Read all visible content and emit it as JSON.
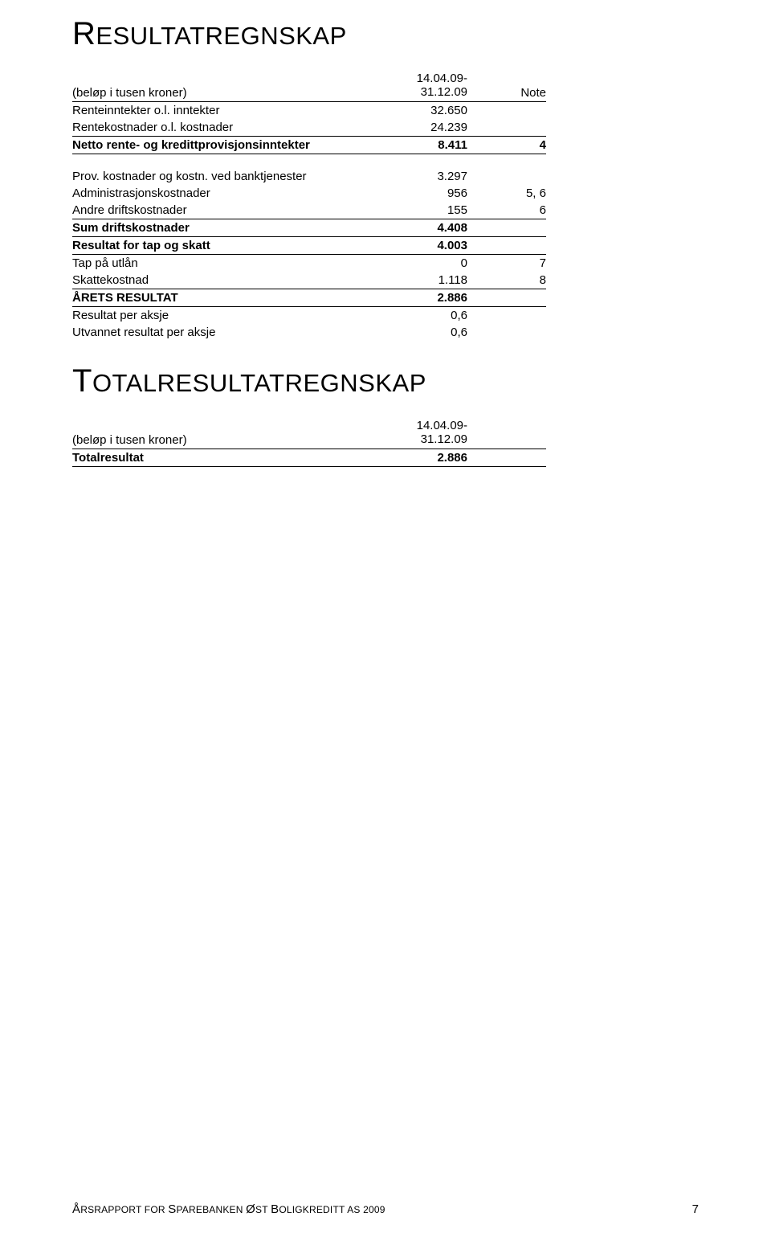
{
  "title1": {
    "first": "R",
    "rest": "ESULTATREGNSKAP"
  },
  "title2": {
    "first": "T",
    "rest": "OTALRESULTATREGNSKAP"
  },
  "period_label_line1": "14.04.09-",
  "period_label_line2": "31.12.09",
  "note_header": "Note",
  "table1": {
    "subhead": "(beløp i tusen kroner)",
    "rows": [
      {
        "label": "Renteinntekter o.l. inntekter",
        "val": "32.650",
        "note": ""
      },
      {
        "label": "Rentekostnader o.l. kostnader",
        "val": "24.239",
        "note": "",
        "underline": true
      },
      {
        "label": "Netto rente- og kredittprovisjonsinntekter",
        "val": "8.411",
        "note": "4",
        "bold": true,
        "underline": true
      }
    ],
    "rows2": [
      {
        "label": "Prov. kostnader og kostn. ved banktjenester",
        "val": "3.297",
        "note": ""
      },
      {
        "label": "Administrasjonskostnader",
        "val": "956",
        "note": "5, 6"
      },
      {
        "label": "Andre driftskostnader",
        "val": "155",
        "note": "6",
        "underline": true
      },
      {
        "label": "Sum driftskostnader",
        "val": "4.408",
        "note": "",
        "bold": true,
        "underline": true
      },
      {
        "label": "Resultat for tap og skatt",
        "val": "4.003",
        "note": "",
        "bold": true,
        "underline": true
      },
      {
        "label": "Tap på utlån",
        "val": "0",
        "note": "7"
      },
      {
        "label": "Skattekostnad",
        "val": "1.118",
        "note": "8",
        "underline": true
      },
      {
        "label": "ÅRETS RESULTAT",
        "val": "2.886",
        "note": "",
        "bold": true,
        "underline": true
      },
      {
        "label": "Resultat per aksje",
        "val": "0,6",
        "note": ""
      },
      {
        "label": "Utvannet resultat per aksje",
        "val": "0,6",
        "note": ""
      }
    ]
  },
  "table2": {
    "subhead": "(beløp i tusen kroner)",
    "rows": [
      {
        "label": "Totalresultat",
        "val": "2.886",
        "note": "",
        "bold": true,
        "underline": true
      }
    ]
  },
  "footer": {
    "text_parts": [
      "Å",
      "RSRAPPORT FOR ",
      "S",
      "PAREBANKEN ",
      "Ø",
      "ST ",
      "B",
      "OLIGKREDITT ",
      "AS 2009"
    ],
    "page": "7"
  },
  "colors": {
    "text": "#000000",
    "background": "#ffffff",
    "rule": "#000000"
  },
  "fonts": {
    "title_first_pt": 40,
    "title_rest_pt": 31,
    "body_pt": 15,
    "footer_small_pt": 12
  }
}
